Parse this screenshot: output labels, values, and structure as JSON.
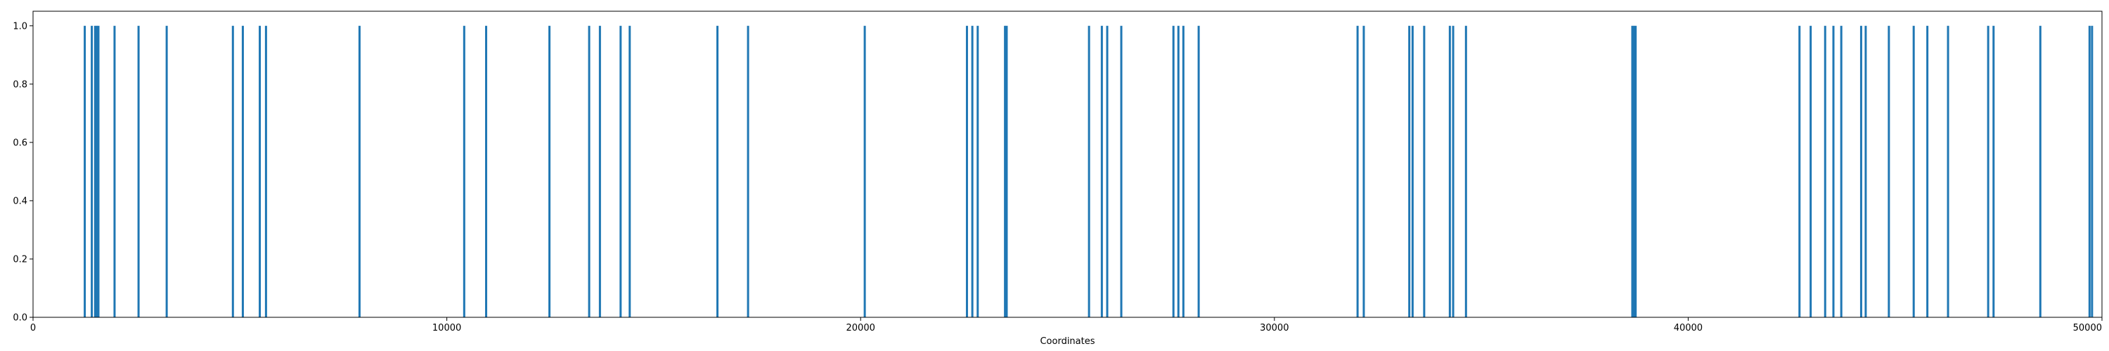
{
  "chart_data": {
    "type": "bar",
    "title": "",
    "xlabel": "Coordinates",
    "ylabel": "",
    "xlim": [
      0,
      50000
    ],
    "ylim": [
      0,
      1.05
    ],
    "x_ticks": [
      0,
      10000,
      20000,
      30000,
      40000,
      50000
    ],
    "y_ticks": [
      0.0,
      0.2,
      0.4,
      0.6,
      0.8,
      1.0
    ],
    "x_tick_labels": [
      "0",
      "10000",
      "20000",
      "30000",
      "40000",
      "50000"
    ],
    "y_tick_labels": [
      "0.0",
      "0.2",
      "0.4",
      "0.6",
      "0.8",
      "1.0"
    ],
    "grid": false,
    "color": "#1f77b4",
    "x": [
      1250,
      1420,
      1500,
      1540,
      1580,
      1970,
      2550,
      3230,
      4830,
      5070,
      5480,
      5630,
      7890,
      10420,
      10950,
      12480,
      13440,
      13700,
      14200,
      14420,
      16540,
      17280,
      20100,
      22570,
      22700,
      22830,
      23490,
      23530,
      25520,
      25830,
      25960,
      26300,
      27560,
      27680,
      27800,
      28170,
      32010,
      32160,
      33260,
      33340,
      33620,
      34240,
      34320,
      34630,
      38650,
      38690,
      38730,
      42690,
      42960,
      43310,
      43510,
      43700,
      44180,
      44290,
      44850,
      45450,
      45780,
      46280,
      47250,
      47380,
      48510,
      49700,
      49760
    ],
    "values": [
      1,
      1,
      1,
      1,
      1,
      1,
      1,
      1,
      1,
      1,
      1,
      1,
      1,
      1,
      1,
      1,
      1,
      1,
      1,
      1,
      1,
      1,
      1,
      1,
      1,
      1,
      1,
      1,
      1,
      1,
      1,
      1,
      1,
      1,
      1,
      1,
      1,
      1,
      1,
      1,
      1,
      1,
      1,
      1,
      1,
      1,
      1,
      1,
      1,
      1,
      1,
      1,
      1,
      1,
      1,
      1,
      1,
      1,
      1,
      1,
      1,
      1,
      1
    ]
  }
}
